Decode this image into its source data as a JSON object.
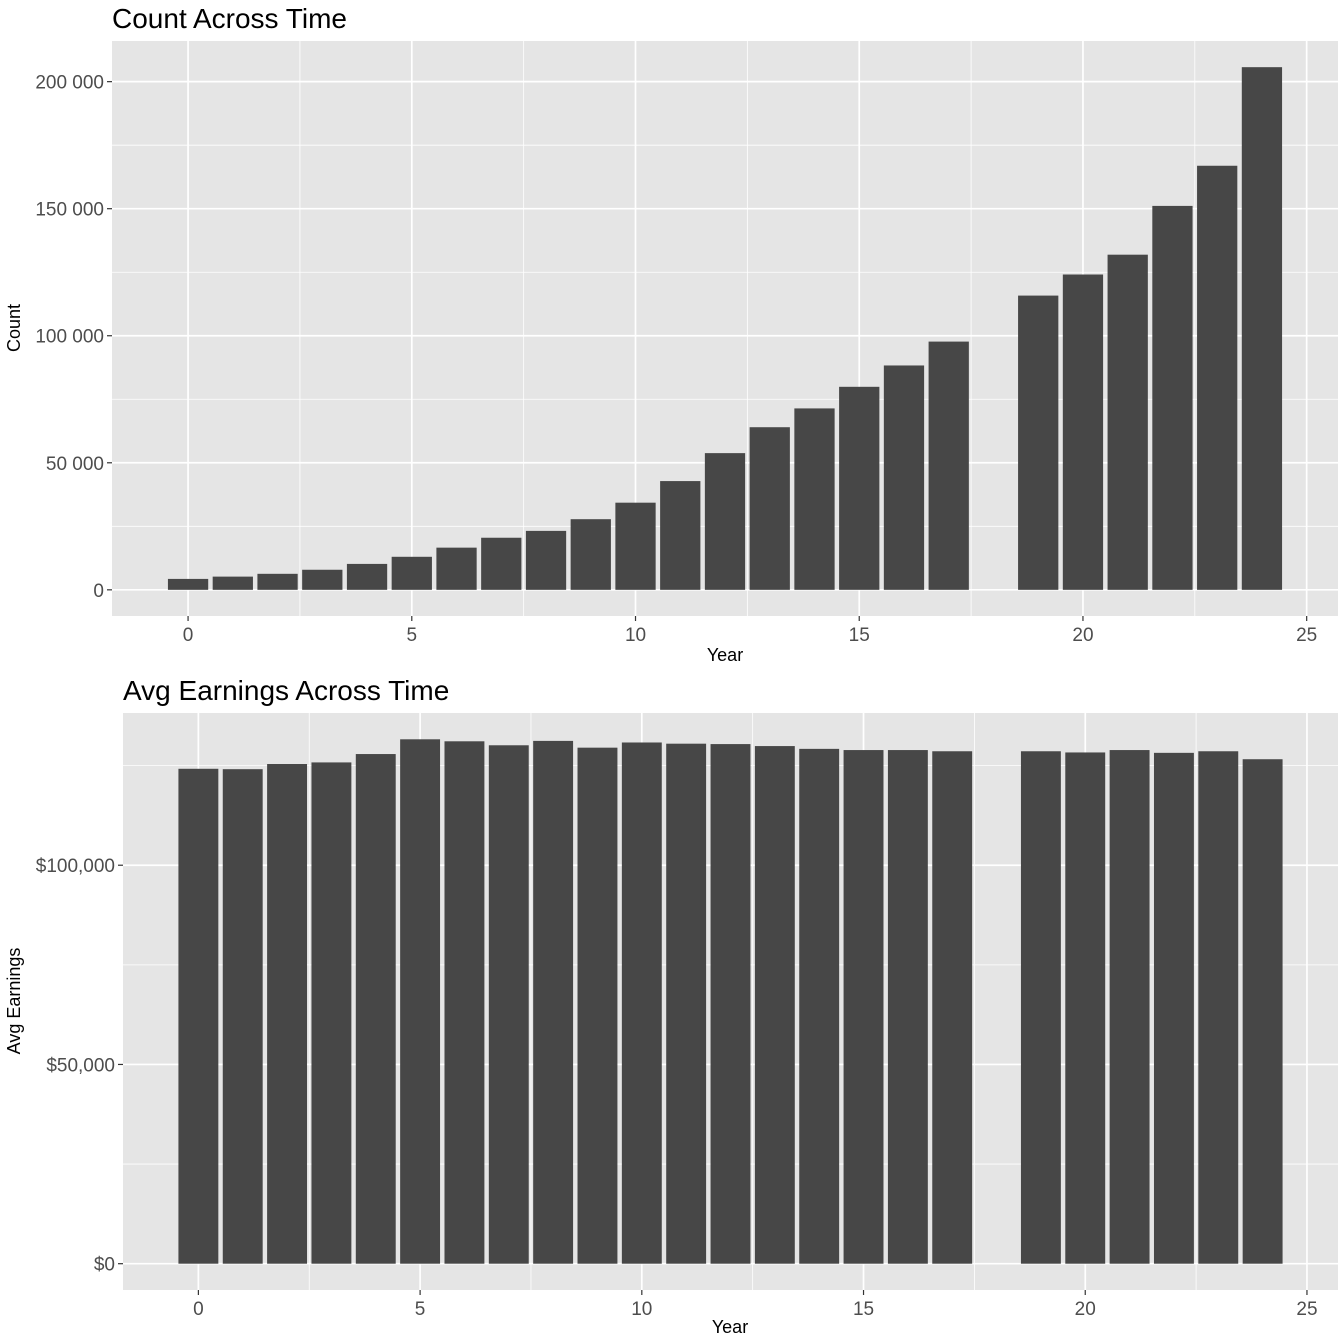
{
  "chart_data": [
    {
      "type": "bar",
      "title": "Count Across Time",
      "xlabel": "Year",
      "ylabel": "Count",
      "x": [
        0,
        1,
        2,
        3,
        4,
        5,
        6,
        7,
        8,
        9,
        10,
        11,
        12,
        13,
        14,
        15,
        16,
        17,
        19,
        20,
        21,
        22,
        23,
        24
      ],
      "values": [
        4300,
        5200,
        6300,
        7900,
        10200,
        13000,
        16600,
        20500,
        23200,
        27800,
        34300,
        42800,
        53800,
        64000,
        71400,
        79900,
        88300,
        97700,
        115800,
        124100,
        131900,
        151100,
        166900,
        205700
      ],
      "xlim": [
        -1.7,
        25.7
      ],
      "ylim": [
        -10300,
        216000
      ],
      "xticks": [
        0,
        5,
        10,
        15,
        20,
        25
      ],
      "xtick_labels": [
        "0",
        "5",
        "10",
        "15",
        "20",
        "25"
      ],
      "yticks": [
        0,
        50000,
        100000,
        150000,
        200000
      ],
      "ytick_labels": [
        "0",
        "50 000",
        "100 000",
        "150 000",
        "200 000"
      ],
      "grid": true,
      "colors": {
        "panel": "#e5e5e5",
        "grid": "#ffffff",
        "bar": "#474747"
      }
    },
    {
      "type": "bar",
      "title": "Avg Earnings Across Time",
      "xlabel": "Year",
      "ylabel": "Avg Earnings",
      "x": [
        0,
        1,
        2,
        3,
        4,
        5,
        6,
        7,
        8,
        9,
        10,
        11,
        12,
        13,
        14,
        15,
        16,
        17,
        19,
        20,
        21,
        22,
        23,
        24
      ],
      "values": [
        124200,
        124100,
        125400,
        125800,
        127900,
        131600,
        131100,
        130100,
        131200,
        129500,
        130800,
        130500,
        130400,
        129900,
        129200,
        128900,
        128900,
        128600,
        128600,
        128300,
        128900,
        128200,
        128600,
        126600
      ],
      "xlim": [
        -1.7,
        25.7
      ],
      "ylim": [
        -6600,
        138200
      ],
      "xticks": [
        0,
        5,
        10,
        15,
        20,
        25
      ],
      "xtick_labels": [
        "0",
        "5",
        "10",
        "15",
        "20",
        "25"
      ],
      "yticks": [
        0,
        50000,
        100000
      ],
      "ytick_labels": [
        "$0",
        "$50,000",
        "$100,000"
      ],
      "grid": true,
      "colors": {
        "panel": "#e5e5e5",
        "grid": "#ffffff",
        "bar": "#474747"
      }
    }
  ]
}
